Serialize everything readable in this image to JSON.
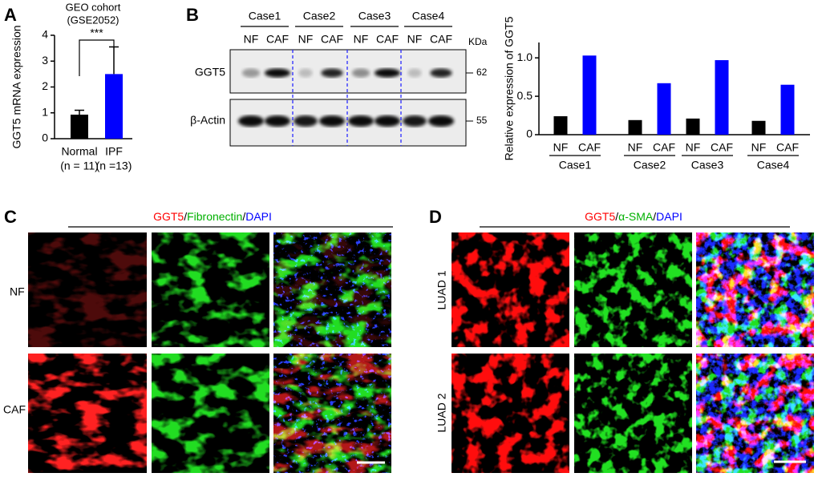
{
  "panel_labels": [
    "A",
    "B",
    "C",
    "D"
  ],
  "chart_data": [
    {
      "type": "bar",
      "title": [
        "GEO cohort",
        "(GSE2052)"
      ],
      "y_label": "GGT5 mRNA expression",
      "categories": [
        "Normal",
        "IPF"
      ],
      "category_notes": [
        "(n = 11)",
        "(n =13)"
      ],
      "values": [
        0.93,
        2.5
      ],
      "errors": [
        0.17,
        1.05
      ],
      "colors": [
        "#000000",
        "#0000ff"
      ],
      "ylim": [
        0,
        4
      ],
      "yticks": [
        0,
        1,
        2,
        3,
        4
      ],
      "annotation": "***"
    },
    {
      "type": "bar",
      "y_label": "Relative expression of GGT5",
      "categories": [
        "NF",
        "CAF",
        "NF",
        "CAF",
        "NF",
        "CAF",
        "NF",
        "CAF"
      ],
      "groups": [
        "Case1",
        "Case2",
        "Case3",
        "Case4"
      ],
      "values": [
        0.24,
        1.03,
        0.19,
        0.67,
        0.21,
        0.97,
        0.18,
        0.65
      ],
      "colors": [
        "#000000",
        "#0000ff",
        "#000000",
        "#0000ff",
        "#000000",
        "#0000ff",
        "#000000",
        "#0000ff"
      ],
      "ylim": [
        0,
        1.2
      ],
      "yticks": [
        0,
        0.5,
        {
          "value": 1,
          "label": "1.0"
        }
      ]
    }
  ],
  "blot": {
    "cases": [
      "Case1",
      "Case2",
      "Case3",
      "Case4"
    ],
    "lanes": [
      "NF",
      "CAF"
    ],
    "unit": "KDa",
    "rows": [
      {
        "label": "GGT5",
        "marker": "62"
      },
      {
        "label": "β-Actin",
        "marker": "55"
      }
    ]
  },
  "panel_c": {
    "stain": [
      {
        "text": "GGT5",
        "color": "#ff0000"
      },
      {
        "text": "/",
        "color": "#000000"
      },
      {
        "text": "Fibronectin",
        "color": "#00b000"
      },
      {
        "text": "/",
        "color": "#000000"
      },
      {
        "text": "DAPI",
        "color": "#0000ff"
      }
    ],
    "rows": [
      "NF",
      "CAF"
    ]
  },
  "panel_d": {
    "stain": [
      {
        "text": "GGT5",
        "color": "#ff0000"
      },
      {
        "text": "/",
        "color": "#000000"
      },
      {
        "text": "α-SMA",
        "color": "#00b000"
      },
      {
        "text": "/",
        "color": "#000000"
      },
      {
        "text": "DAPI",
        "color": "#0000ff"
      }
    ],
    "rows": [
      "LUAD 1",
      "LUAD 2"
    ]
  }
}
